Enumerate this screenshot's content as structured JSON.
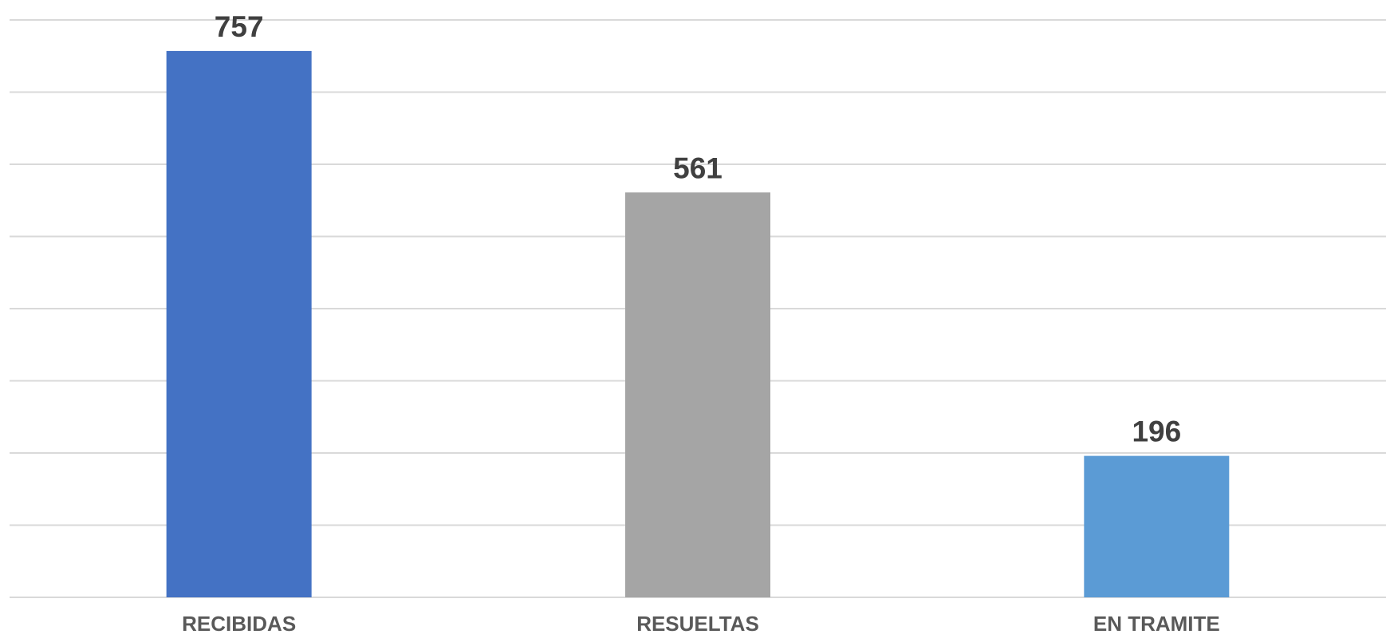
{
  "chart_data": {
    "type": "bar",
    "title": "",
    "xlabel": "",
    "ylabel": "",
    "categories": [
      "RECIBIDAS",
      "RESUELTAS",
      "EN TRAMITE"
    ],
    "values": [
      757,
      561,
      196
    ],
    "bar_colors": [
      "#4472c4",
      "#a5a5a5",
      "#5b9bd5"
    ],
    "ylim": [
      0,
      800
    ],
    "grid_step": 100,
    "grid": true,
    "legend": "none",
    "data_labels": [
      "757",
      "561",
      "196"
    ]
  }
}
